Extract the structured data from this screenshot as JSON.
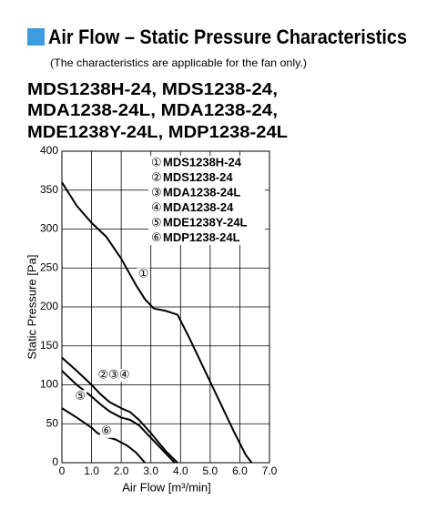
{
  "header": {
    "title": "Air Flow – Static Pressure Characteristics",
    "note": "(The characteristics are applicable for the fan only.)",
    "models": [
      "MDS1238H-24, MDS1238-24,",
      "MDA1238-24L, MDA1238-24,",
      "MDE1238Y-24L, MDP1238-24L"
    ]
  },
  "chart_data": {
    "type": "line",
    "xlabel": "Air Flow [m³/min]",
    "ylabel": "Static Pressure [Pa]",
    "xlim": [
      0,
      7
    ],
    "ylim": [
      0,
      400
    ],
    "xticks": [
      0,
      {
        "value": 1,
        "label": "1.0"
      },
      {
        "value": 2,
        "label": "2.0"
      },
      {
        "value": 3,
        "label": "3.0"
      },
      {
        "value": 4,
        "label": "4.0"
      },
      {
        "value": 5,
        "label": "5.0"
      },
      {
        "value": 6,
        "label": "6.0"
      },
      {
        "value": 7,
        "label": "7.0"
      }
    ],
    "yticks": [
      0,
      50,
      100,
      150,
      200,
      250,
      300,
      350,
      400
    ],
    "grid": true,
    "legend": [
      {
        "symbol": "①",
        "name": "MDS1238H-24"
      },
      {
        "symbol": "②",
        "name": "MDS1238-24"
      },
      {
        "symbol": "③",
        "name": "MDA1238-24L"
      },
      {
        "symbol": "④",
        "name": "MDA1238-24"
      },
      {
        "symbol": "⑤",
        "name": "MDE1238Y-24L"
      },
      {
        "symbol": "⑥",
        "name": "MDP1238-24L"
      }
    ],
    "series": [
      {
        "name": "①",
        "color": "#000000",
        "label_at": [
          2.75,
          242
        ],
        "x": [
          0,
          0.5,
          1,
          1.5,
          2,
          2.5,
          2.8,
          3.1,
          3.5,
          3.9,
          4.3,
          4.8,
          5.3,
          5.8,
          6.2,
          6.4
        ],
        "values": [
          360,
          330,
          308,
          290,
          262,
          228,
          210,
          198,
          195,
          190,
          160,
          120,
          80,
          40,
          10,
          0
        ]
      },
      {
        "name": "②③④",
        "color": "#000000",
        "label_at": [
          1.75,
          112
        ],
        "x": [
          0,
          0.5,
          1,
          1.3,
          1.6,
          2,
          2.3,
          2.6,
          3,
          3.5,
          3.9
        ],
        "values": [
          135,
          118,
          100,
          88,
          78,
          70,
          65,
          55,
          38,
          15,
          0
        ]
      },
      {
        "name": "⑤",
        "color": "#000000",
        "label_at": [
          0.62,
          85
        ],
        "x": [
          0,
          0.5,
          1,
          1.3,
          1.6,
          2,
          2.3,
          2.6,
          3,
          3.5,
          3.8
        ],
        "values": [
          118,
          100,
          85,
          75,
          66,
          58,
          55,
          48,
          32,
          12,
          0
        ]
      },
      {
        "name": "⑥",
        "color": "#000000",
        "label_at": [
          1.5,
          40
        ],
        "x": [
          0,
          0.5,
          1,
          1.2,
          1.5,
          1.8,
          2.2,
          2.5,
          2.8
        ],
        "values": [
          70,
          58,
          45,
          38,
          33,
          30,
          22,
          13,
          0
        ]
      }
    ]
  }
}
